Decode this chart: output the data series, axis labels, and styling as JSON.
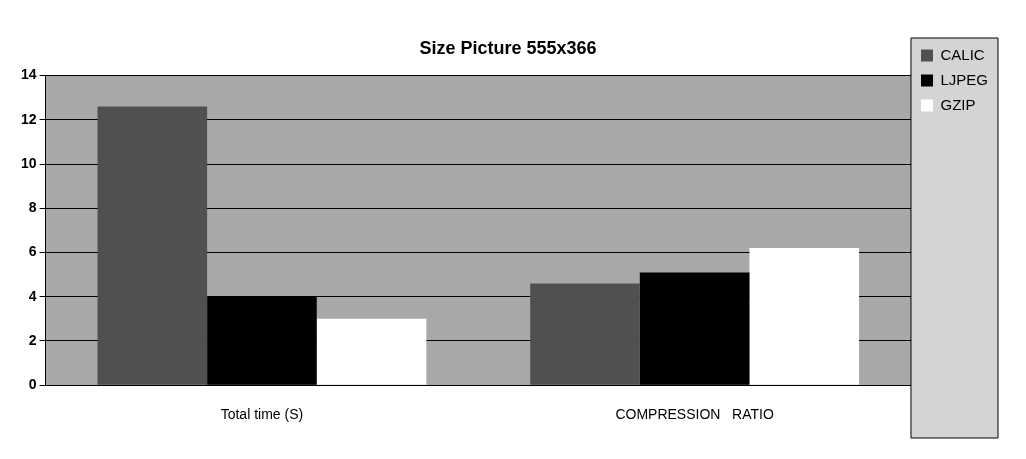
{
  "chart_data": {
    "type": "bar",
    "title": "Size Picture 555x366",
    "categories": [
      "Total time (S)",
      "COMPRESSION   RATIO"
    ],
    "series": [
      {
        "name": "CALIC",
        "color": "#505050",
        "values": [
          12.6,
          4.6
        ]
      },
      {
        "name": "LJPEG",
        "color": "#000000",
        "values": [
          4.0,
          5.1
        ]
      },
      {
        "name": "GZIP",
        "color": "#ffffff",
        "values": [
          3.0,
          6.2
        ]
      }
    ],
    "ylim": [
      0,
      14
    ],
    "yticks": [
      0,
      2,
      4,
      6,
      8,
      10,
      12,
      14
    ],
    "grid": "y",
    "legend": "right"
  }
}
